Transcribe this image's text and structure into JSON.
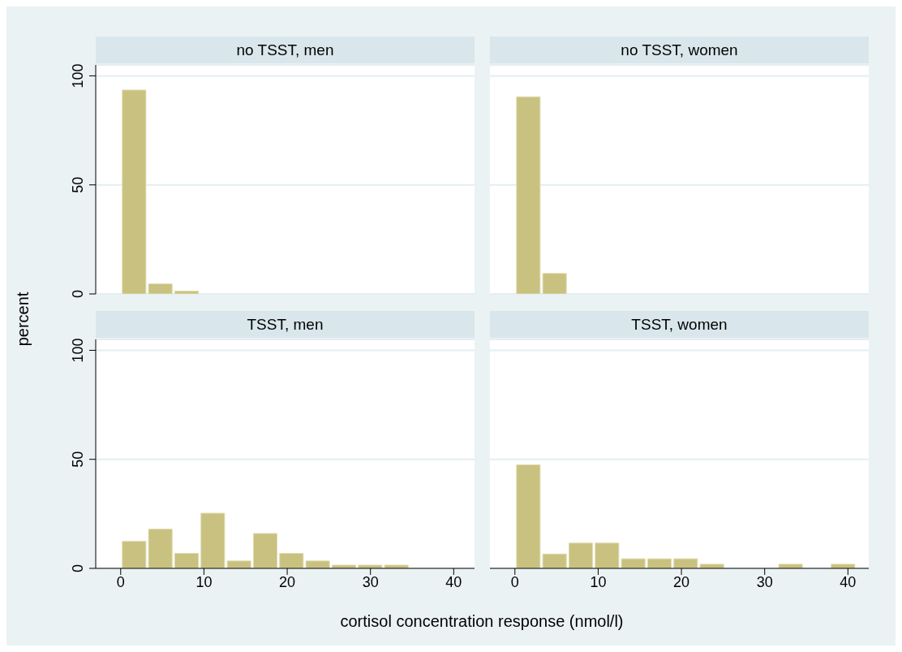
{
  "chart_data": [
    {
      "type": "histogram",
      "title": "no TSST, men",
      "ylabel": "percent",
      "bins": [
        0,
        3.15,
        6.3,
        9.45
      ],
      "values": [
        93.5,
        4.6,
        1.3
      ],
      "color": "#c9c17f",
      "xlim": [
        -3,
        42.5
      ],
      "xticks": [
        0,
        10,
        20,
        30,
        40
      ],
      "ylim": [
        0,
        105
      ],
      "yticks": [
        0,
        50,
        100
      ],
      "grid": "y",
      "tick_labels": "y"
    },
    {
      "type": "histogram",
      "title": "no TSST, women",
      "bins": [
        0,
        3.15,
        6.3
      ],
      "values": [
        90.4,
        9.4
      ],
      "color": "#c9c17f",
      "xlim": [
        -3,
        42.5
      ],
      "xticks": [
        0,
        10,
        20,
        30,
        40
      ],
      "ylim": [
        0,
        105
      ],
      "yticks": [
        0,
        50,
        100
      ],
      "grid": "y",
      "tick_labels": false
    },
    {
      "type": "histogram",
      "title": "TSST, men",
      "xlabel": "cortisol concentration response (nmol/l)",
      "bins": [
        0,
        3.15,
        6.3,
        9.45,
        12.6,
        15.75,
        18.9,
        22.05,
        25.2,
        28.35,
        31.5,
        34.65
      ],
      "values": [
        12.4,
        18,
        6.9,
        25.3,
        3.4,
        16,
        6.9,
        3.4,
        1.5,
        1.5,
        1.5
      ],
      "color": "#c9c17f",
      "xlim": [
        -3,
        42.5
      ],
      "xticks": [
        0,
        10,
        20,
        30,
        40
      ],
      "ylim": [
        0,
        105
      ],
      "yticks": [
        0,
        50,
        100
      ],
      "grid": "y"
    },
    {
      "type": "histogram",
      "title": "TSST, women",
      "bins": [
        0,
        3.15,
        6.3,
        9.45,
        12.6,
        15.75,
        18.9,
        22.05,
        25.2,
        28.35,
        31.5,
        34.65,
        37.8,
        40.95
      ],
      "values": [
        47.5,
        6.6,
        11.6,
        11.6,
        4.4,
        4.4,
        4.4,
        1.9,
        0,
        0,
        1.9,
        0,
        1.9
      ],
      "color": "#c9c17f",
      "xlim": [
        -3,
        42.5
      ],
      "xticks": [
        0,
        10,
        20,
        30,
        40
      ],
      "ylim": [
        0,
        105
      ],
      "yticks": [
        0,
        50,
        100
      ],
      "grid": "y",
      "tick_labels": "x"
    }
  ]
}
